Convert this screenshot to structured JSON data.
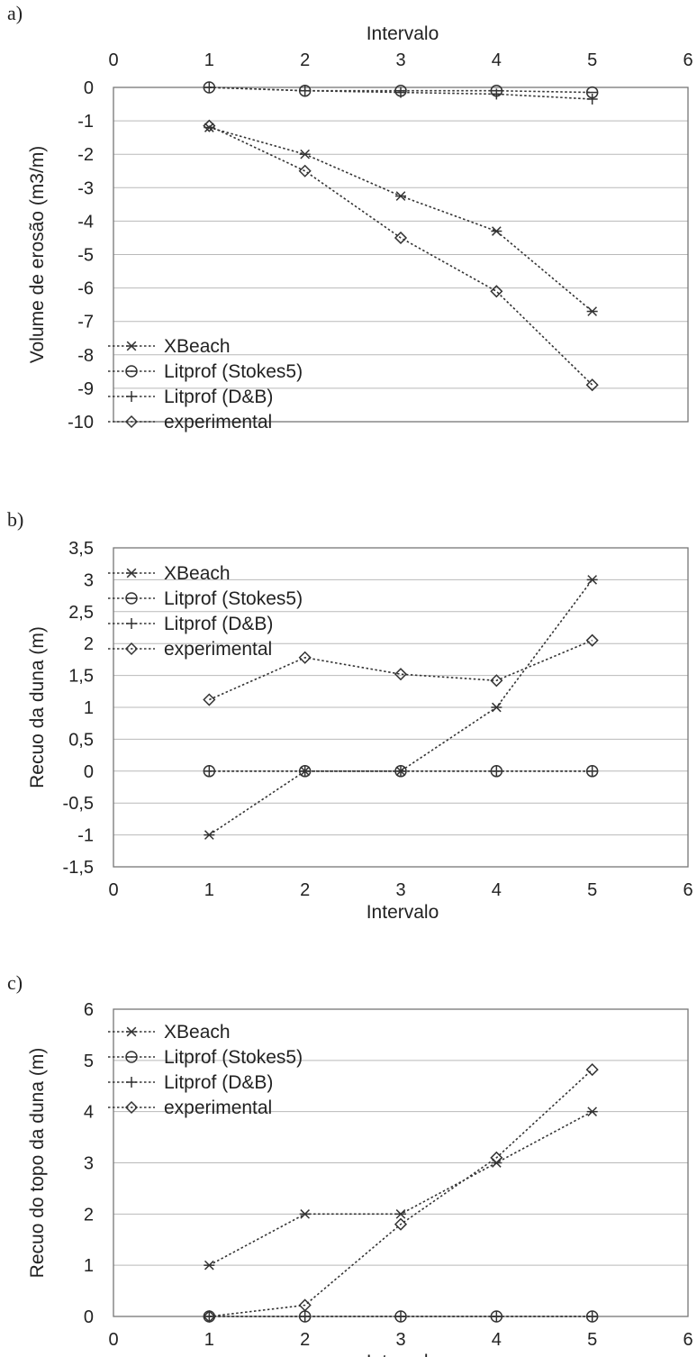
{
  "chart_data": [
    {
      "panel": "a)",
      "type": "line",
      "xlabel": "Intervalo",
      "ylabel": "Volume de erosão (m3/m)",
      "xlim": [
        0,
        6
      ],
      "ylim": [
        -10,
        0
      ],
      "xticks": [
        "0",
        "1",
        "2",
        "3",
        "4",
        "5",
        "6"
      ],
      "yticks": [
        "0",
        "-1",
        "-2",
        "-3",
        "-4",
        "-5",
        "-6",
        "-7",
        "-8",
        "-9",
        "-10"
      ],
      "x_axis_position": "top",
      "grid": "horizontal",
      "legend_position": "bottom-left",
      "x": [
        1,
        2,
        3,
        4,
        5
      ],
      "series": [
        {
          "name": "XBeach",
          "marker": "asterisk",
          "values": [
            -1.2,
            -2.0,
            -3.25,
            -4.3,
            -6.7
          ]
        },
        {
          "name": "Litprof (Stokes5)",
          "marker": "circle",
          "values": [
            0.0,
            -0.1,
            -0.1,
            -0.1,
            -0.15
          ]
        },
        {
          "name": "Litprof (D&B)",
          "marker": "plus",
          "values": [
            0.0,
            -0.1,
            -0.15,
            -0.2,
            -0.35
          ]
        },
        {
          "name": "experimental",
          "marker": "diamond",
          "values": [
            -1.15,
            -2.5,
            -4.5,
            -6.1,
            -8.9
          ]
        }
      ]
    },
    {
      "panel": "b)",
      "type": "line",
      "xlabel": "Intervalo",
      "ylabel": "Recuo da duna (m)",
      "xlim": [
        0,
        6
      ],
      "ylim": [
        -1.5,
        3.5
      ],
      "xticks": [
        "0",
        "1",
        "2",
        "3",
        "4",
        "5",
        "6"
      ],
      "yticks": [
        "3,5",
        "3",
        "2,5",
        "2",
        "1,5",
        "1",
        "0,5",
        "0",
        "-0,5",
        "-1",
        "-1,5"
      ],
      "x_axis_position": "bottom",
      "grid": "horizontal",
      "legend_position": "top-left",
      "x": [
        1,
        2,
        3,
        4,
        5
      ],
      "series": [
        {
          "name": "XBeach",
          "marker": "asterisk",
          "values": [
            -1.0,
            0.0,
            0.0,
            1.0,
            3.0
          ]
        },
        {
          "name": "Litprof (Stokes5)",
          "marker": "circle",
          "values": [
            0.0,
            0.0,
            0.0,
            0.0,
            0.0
          ]
        },
        {
          "name": "Litprof (D&B)",
          "marker": "plus",
          "values": [
            0.0,
            0.0,
            0.0,
            0.0,
            0.0
          ]
        },
        {
          "name": "experimental",
          "marker": "diamond",
          "values": [
            1.12,
            1.78,
            1.52,
            1.42,
            2.05
          ]
        }
      ]
    },
    {
      "panel": "c)",
      "type": "line",
      "xlabel": "Intervalo",
      "ylabel": "Recuo do topo da duna (m)",
      "xlim": [
        0,
        6
      ],
      "ylim": [
        0,
        6
      ],
      "xticks": [
        "0",
        "1",
        "2",
        "3",
        "4",
        "5",
        "6"
      ],
      "yticks": [
        "6",
        "5",
        "4",
        "3",
        "2",
        "1",
        "0"
      ],
      "x_axis_position": "bottom",
      "grid": "horizontal",
      "legend_position": "top-left",
      "x": [
        1,
        2,
        3,
        4,
        5
      ],
      "series": [
        {
          "name": "XBeach",
          "marker": "asterisk",
          "values": [
            1.0,
            2.0,
            2.0,
            3.0,
            4.0
          ]
        },
        {
          "name": "Litprof (Stokes5)",
          "marker": "circle",
          "values": [
            0.0,
            0.0,
            0.0,
            0.0,
            0.0
          ]
        },
        {
          "name": "Litprof (D&B)",
          "marker": "plus",
          "values": [
            0.0,
            0.0,
            0.0,
            0.0,
            0.0
          ]
        },
        {
          "name": "experimental",
          "marker": "diamond",
          "values": [
            0.0,
            0.22,
            1.8,
            3.1,
            4.82
          ]
        }
      ]
    }
  ]
}
